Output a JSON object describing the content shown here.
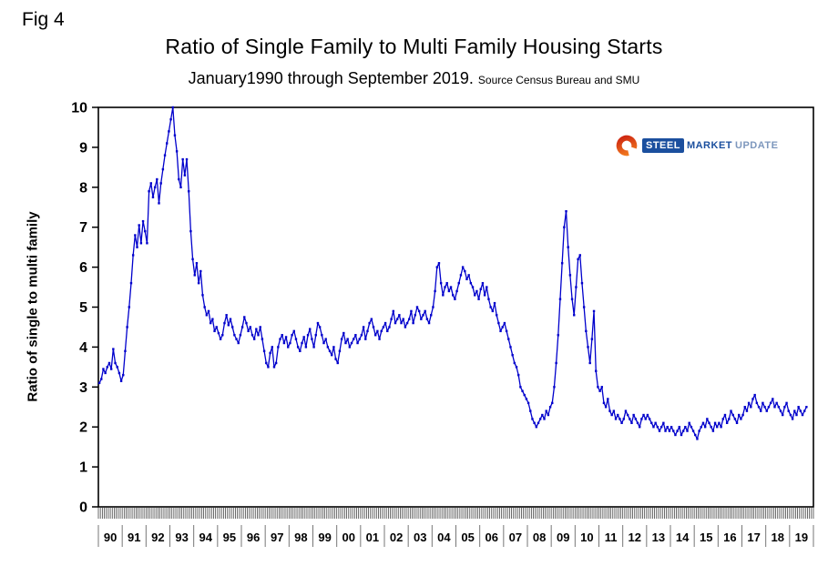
{
  "figure_label": "Fig 4",
  "title": "Ratio of Single Family to Multi Family Housing Starts",
  "subtitle": "January1990 through September 2019.",
  "subtitle_source": "Source Census Bureau and SMU",
  "y_axis_title": "Ratio of single to multi family",
  "logo": {
    "steel": "STEEL",
    "market": "MARKET",
    "update": "UPDATE"
  },
  "colors": {
    "line": "#0000cc",
    "axis": "#000000",
    "minor_tick": "#444444",
    "year_tick": "#777777",
    "logo_blue": "#1b4f9e",
    "logo_orange_outer": "#cc2211",
    "logo_orange_inner": "#f58220"
  },
  "chart_data": {
    "type": "line",
    "title": "Ratio of Single Family to Multi Family Housing Starts",
    "subtitle": "January1990 through September 2019. Source Census Bureau and SMU",
    "xlabel": "",
    "ylabel": "Ratio of single to multi family",
    "ylim": [
      0,
      10
    ],
    "y_ticks": [
      0,
      1,
      2,
      3,
      4,
      5,
      6,
      7,
      8,
      9,
      10
    ],
    "x_tick_labels": [
      "90",
      "91",
      "92",
      "93",
      "94",
      "95",
      "96",
      "97",
      "98",
      "99",
      "00",
      "01",
      "02",
      "03",
      "04",
      "05",
      "06",
      "07",
      "08",
      "09",
      "10",
      "11",
      "12",
      "13",
      "14",
      "15",
      "16",
      "17",
      "18",
      "19"
    ],
    "frequency": "monthly",
    "start": "1990-01",
    "end": "2019-09",
    "grid": false,
    "legend": "none",
    "series": [
      {
        "name": "Single family to multi family ratio",
        "values": [
          3.1,
          3.2,
          3.45,
          3.35,
          3.5,
          3.6,
          3.45,
          3.95,
          3.6,
          3.5,
          3.35,
          3.15,
          3.3,
          3.9,
          4.5,
          5.0,
          5.6,
          6.3,
          6.8,
          6.5,
          7.05,
          6.6,
          7.15,
          6.9,
          6.6,
          7.9,
          8.1,
          7.75,
          8.0,
          8.2,
          7.6,
          8.1,
          8.45,
          8.8,
          9.1,
          9.4,
          9.7,
          10.0,
          9.3,
          8.9,
          8.2,
          8.0,
          8.7,
          8.3,
          8.7,
          7.9,
          6.9,
          6.2,
          5.8,
          6.1,
          5.6,
          5.9,
          5.3,
          5.0,
          4.8,
          4.9,
          4.6,
          4.7,
          4.4,
          4.5,
          4.35,
          4.2,
          4.3,
          4.6,
          4.8,
          4.55,
          4.7,
          4.5,
          4.3,
          4.2,
          4.1,
          4.3,
          4.5,
          4.75,
          4.6,
          4.4,
          4.5,
          4.3,
          4.2,
          4.45,
          4.3,
          4.5,
          4.2,
          3.9,
          3.6,
          3.5,
          3.85,
          4.0,
          3.5,
          3.6,
          4.0,
          4.2,
          4.3,
          4.1,
          4.25,
          4.0,
          4.1,
          4.3,
          4.4,
          4.2,
          4.0,
          3.9,
          4.1,
          4.25,
          4.0,
          4.3,
          4.45,
          4.2,
          4.0,
          4.3,
          4.6,
          4.5,
          4.3,
          4.1,
          4.2,
          4.0,
          3.9,
          3.8,
          4.0,
          3.7,
          3.6,
          3.9,
          4.2,
          4.35,
          4.1,
          4.2,
          4.0,
          4.1,
          4.2,
          4.3,
          4.1,
          4.2,
          4.3,
          4.5,
          4.2,
          4.4,
          4.6,
          4.7,
          4.5,
          4.3,
          4.4,
          4.2,
          4.4,
          4.5,
          4.6,
          4.4,
          4.5,
          4.7,
          4.9,
          4.6,
          4.7,
          4.8,
          4.6,
          4.7,
          4.5,
          4.6,
          4.7,
          4.9,
          4.6,
          4.8,
          5.0,
          4.9,
          4.7,
          4.8,
          4.9,
          4.7,
          4.6,
          4.8,
          5.0,
          5.4,
          6.0,
          6.1,
          5.6,
          5.3,
          5.5,
          5.6,
          5.4,
          5.5,
          5.3,
          5.2,
          5.4,
          5.6,
          5.8,
          6.0,
          5.9,
          5.7,
          5.8,
          5.6,
          5.5,
          5.3,
          5.4,
          5.2,
          5.45,
          5.6,
          5.3,
          5.5,
          5.2,
          5.0,
          4.9,
          5.1,
          4.8,
          4.6,
          4.4,
          4.5,
          4.6,
          4.4,
          4.2,
          4.0,
          3.8,
          3.6,
          3.5,
          3.3,
          3.0,
          2.9,
          2.8,
          2.7,
          2.6,
          2.4,
          2.2,
          2.1,
          2.0,
          2.1,
          2.2,
          2.3,
          2.2,
          2.4,
          2.3,
          2.5,
          2.6,
          3.0,
          3.6,
          4.3,
          5.2,
          6.1,
          7.0,
          7.4,
          6.5,
          5.8,
          5.2,
          4.8,
          5.5,
          6.2,
          6.3,
          5.6,
          5.0,
          4.4,
          4.0,
          3.6,
          4.2,
          4.9,
          3.4,
          3.0,
          2.9,
          3.0,
          2.6,
          2.5,
          2.7,
          2.4,
          2.3,
          2.4,
          2.2,
          2.3,
          2.2,
          2.1,
          2.2,
          2.4,
          2.3,
          2.2,
          2.1,
          2.3,
          2.2,
          2.1,
          2.0,
          2.2,
          2.3,
          2.2,
          2.3,
          2.2,
          2.1,
          2.0,
          2.1,
          2.0,
          1.9,
          2.0,
          2.1,
          1.9,
          2.0,
          1.9,
          2.0,
          1.9,
          1.8,
          1.9,
          2.0,
          1.8,
          1.9,
          2.0,
          1.9,
          2.1,
          2.0,
          1.9,
          1.8,
          1.7,
          1.9,
          2.0,
          2.1,
          2.0,
          2.2,
          2.1,
          2.0,
          1.9,
          2.1,
          2.0,
          2.1,
          2.0,
          2.2,
          2.3,
          2.1,
          2.2,
          2.4,
          2.3,
          2.2,
          2.1,
          2.3,
          2.2,
          2.3,
          2.5,
          2.4,
          2.6,
          2.5,
          2.7,
          2.8,
          2.6,
          2.5,
          2.4,
          2.6,
          2.5,
          2.4,
          2.5,
          2.6,
          2.7,
          2.5,
          2.6,
          2.5,
          2.4,
          2.3,
          2.5,
          2.6,
          2.4,
          2.3,
          2.2,
          2.4,
          2.3,
          2.5,
          2.4,
          2.3,
          2.4,
          2.5
        ]
      }
    ]
  }
}
